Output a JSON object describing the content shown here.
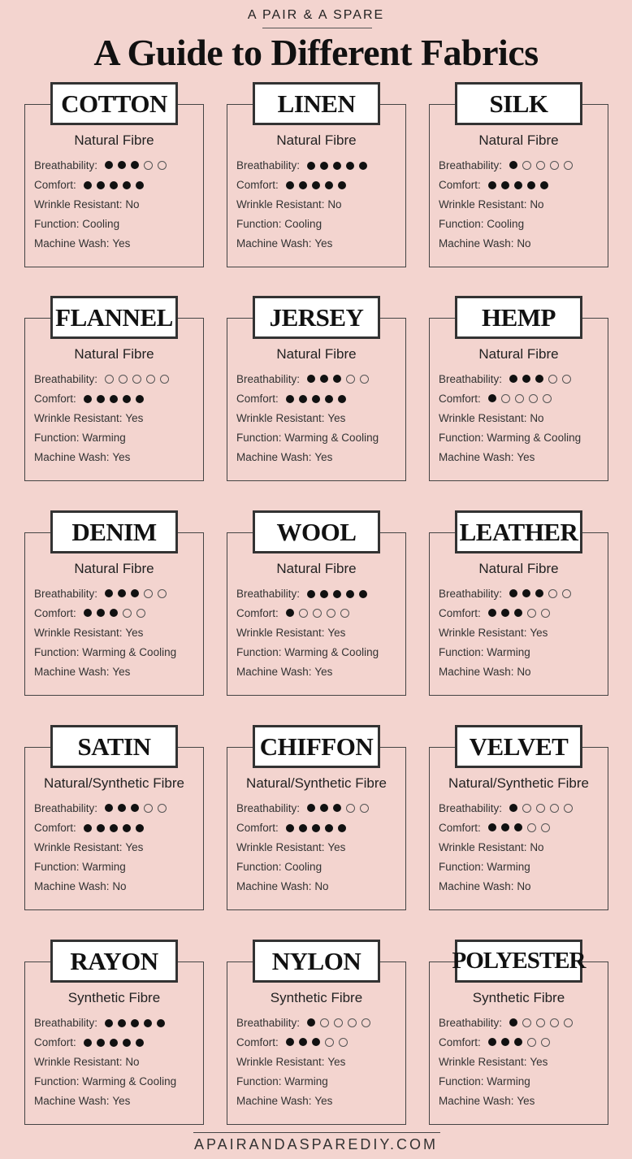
{
  "header": {
    "brand": "A PAIR & A SPARE",
    "title": "A Guide to Different Fabrics"
  },
  "labels": {
    "breathability": "Breathability:",
    "comfort": "Comfort:",
    "wrinkle": "Wrinkle Resistant:",
    "function": "Function:",
    "wash": "Machine Wash:"
  },
  "rating_max": 5,
  "fabrics": [
    {
      "name": "COTTON",
      "fibre": "Natural Fibre",
      "breathability": 3,
      "comfort": 5,
      "wrinkle": "No",
      "function": "Cooling",
      "wash": "Yes"
    },
    {
      "name": "LINEN",
      "fibre": "Natural Fibre",
      "breathability": 5,
      "comfort": 5,
      "wrinkle": "No",
      "function": "Cooling",
      "wash": "Yes"
    },
    {
      "name": "SILK",
      "fibre": "Natural Fibre",
      "breathability": 1,
      "comfort": 5,
      "wrinkle": "No",
      "function": "Cooling",
      "wash": "No"
    },
    {
      "name": "FLANNEL",
      "fibre": "Natural Fibre",
      "breathability": 0,
      "comfort": 5,
      "wrinkle": "Yes",
      "function": "Warming",
      "wash": "Yes"
    },
    {
      "name": "JERSEY",
      "fibre": "Natural Fibre",
      "breathability": 3,
      "comfort": 5,
      "wrinkle": "Yes",
      "function": "Warming & Cooling",
      "wash": "Yes"
    },
    {
      "name": "HEMP",
      "fibre": "Natural Fibre",
      "breathability": 3,
      "comfort": 1,
      "wrinkle": "No",
      "function": "Warming & Cooling",
      "wash": "Yes"
    },
    {
      "name": "DENIM",
      "fibre": "Natural Fibre",
      "breathability": 3,
      "comfort": 3,
      "wrinkle": "Yes",
      "function": "Warming & Cooling",
      "wash": "Yes"
    },
    {
      "name": "WOOL",
      "fibre": "Natural Fibre",
      "breathability": 5,
      "comfort": 1,
      "wrinkle": "Yes",
      "function": "Warming & Cooling",
      "wash": "Yes"
    },
    {
      "name": "LEATHER",
      "fibre": "Natural Fibre",
      "breathability": 3,
      "comfort": 3,
      "wrinkle": "Yes",
      "function": "Warming",
      "wash": "No"
    },
    {
      "name": "SATIN",
      "fibre": "Natural/Synthetic Fibre",
      "breathability": 3,
      "comfort": 5,
      "wrinkle": "Yes",
      "function": "Warming",
      "wash": "No"
    },
    {
      "name": "CHIFFON",
      "fibre": "Natural/Synthetic Fibre",
      "breathability": 3,
      "comfort": 5,
      "wrinkle": "Yes",
      "function": "Cooling",
      "wash": "No"
    },
    {
      "name": "VELVET",
      "fibre": "Natural/Synthetic Fibre",
      "breathability": 1,
      "comfort": 3,
      "wrinkle": "No",
      "function": "Warming",
      "wash": "No"
    },
    {
      "name": "RAYON",
      "fibre": "Synthetic Fibre",
      "breathability": 5,
      "comfort": 5,
      "wrinkle": "No",
      "function": "Warming & Cooling",
      "wash": "Yes"
    },
    {
      "name": "NYLON",
      "fibre": "Synthetic Fibre",
      "breathability": 1,
      "comfort": 3,
      "wrinkle": "Yes",
      "function": "Warming",
      "wash": "Yes"
    },
    {
      "name": "POLYESTER",
      "fibre": "Synthetic Fibre",
      "breathability": 1,
      "comfort": 3,
      "wrinkle": "Yes",
      "function": "Warming",
      "wash": "Yes"
    }
  ],
  "footer": {
    "website": "APAIRANDASPAREDIY.COM"
  },
  "colors": {
    "background": "#f3d4cf",
    "ink": "#111111",
    "label_box": "#ffffff"
  }
}
